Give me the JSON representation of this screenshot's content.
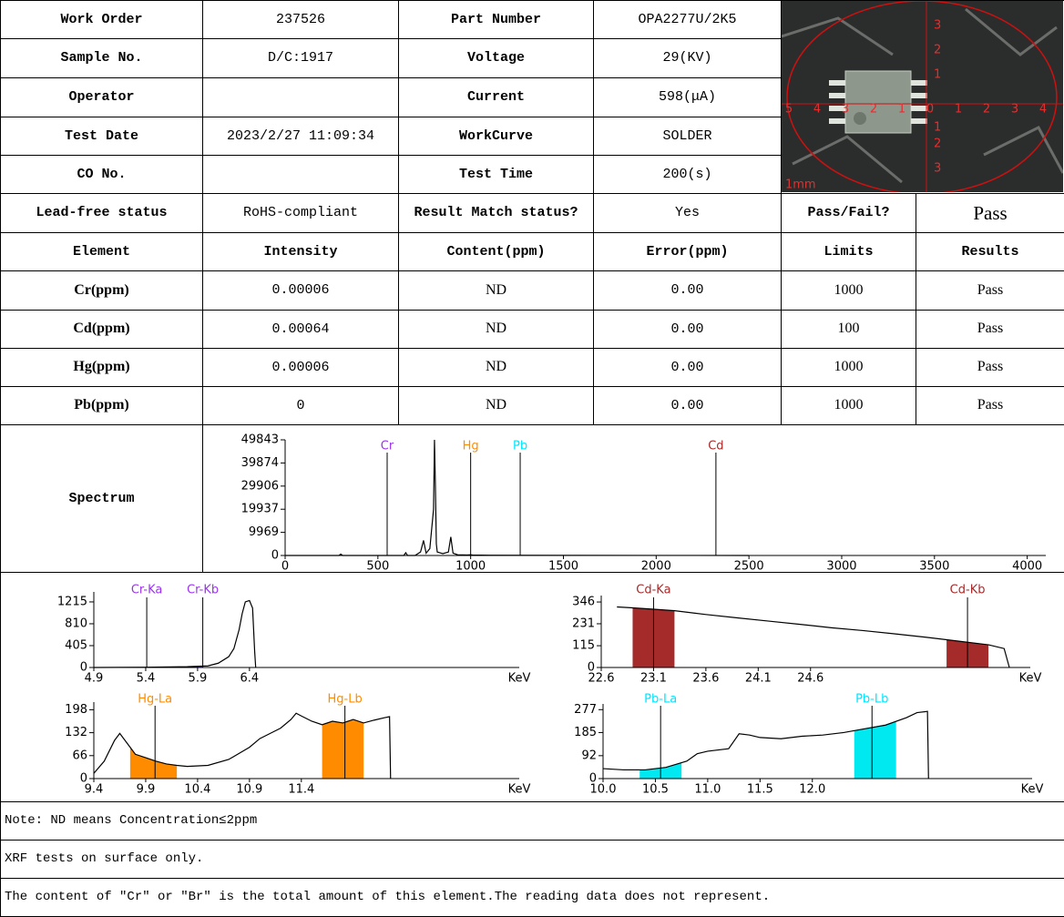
{
  "report": {
    "info": [
      [
        "Work Order",
        "237526",
        "Part Number",
        "OPA2277U/2K5"
      ],
      [
        "Sample No.",
        "D/C:1917",
        "Voltage",
        "29(KV)"
      ],
      [
        "Operator",
        "",
        "Current",
        "598(μA)"
      ],
      [
        "Test Date",
        "2023/2/27 11:09:34",
        "WorkCurve",
        "SOLDER"
      ],
      [
        "CO No.",
        "",
        "Test Time",
        "200(s)"
      ]
    ],
    "photo": {
      "scale_label": "1mm",
      "x_labels": [
        "5",
        "4",
        "3",
        "2",
        "1",
        "0",
        "1",
        "2",
        "3",
        "4"
      ],
      "y_labels": [
        "3",
        "2",
        "1",
        "1",
        "2",
        "3"
      ]
    },
    "status": [
      "Lead-free status",
      "RoHS-compliant",
      "Result Match status?",
      "Yes",
      "Pass/Fail?",
      "Pass"
    ],
    "elements": {
      "header": [
        "Element",
        "Intensity",
        "Content(ppm)",
        "Error(ppm)",
        "Limits",
        "Results"
      ],
      "rows": [
        [
          "Cr(ppm)",
          "0.00006",
          "ND",
          "0.00",
          "1000",
          "Pass"
        ],
        [
          "Cd(ppm)",
          "0.00064",
          "ND",
          "0.00",
          "100",
          "Pass"
        ],
        [
          "Hg(ppm)",
          "0.00006",
          "ND",
          "0.00",
          "1000",
          "Pass"
        ],
        [
          "Pb(ppm)",
          "0",
          "ND",
          "0.00",
          "1000",
          "Pass"
        ]
      ]
    },
    "spectrum_label": "Spectrum",
    "notes": [
      "Note: ND means Concentration≤2ppm",
      "XRF tests on surface only.",
      "The content of \"Cr\" or \"Br\" is the total amount of this element.The reading data does not represent."
    ]
  },
  "chart_data": [
    {
      "type": "line",
      "color": "#000000",
      "x": [
        0,
        100,
        200,
        290,
        300,
        310,
        400,
        500,
        600,
        640,
        650,
        660,
        700,
        730,
        746,
        760,
        780,
        800,
        805,
        810,
        815,
        820,
        850,
        880,
        893,
        905,
        930,
        980,
        1000,
        1010,
        1100,
        1500,
        2000,
        2500
      ],
      "values": [
        0,
        0,
        0,
        0,
        600,
        0,
        0,
        0,
        0,
        0,
        1200,
        0,
        0,
        1500,
        6500,
        1000,
        3000,
        20000,
        49843,
        30000,
        5000,
        1500,
        800,
        1500,
        8000,
        1000,
        300,
        200,
        300,
        200,
        100,
        50,
        30,
        0
      ],
      "xlim": [
        0,
        4100
      ],
      "ylim": [
        0,
        49843
      ],
      "xticks": [
        0,
        500,
        1000,
        1500,
        2000,
        2500,
        3000,
        3500,
        4000
      ],
      "yticks": [
        0,
        9969,
        19937,
        29906,
        39874,
        49843
      ],
      "markers": [
        {
          "label": "Cr",
          "x": 550,
          "color": "#9933ee"
        },
        {
          "label": "Hg",
          "x": 1000,
          "color": "#ff8c00"
        },
        {
          "label": "Pb",
          "x": 1267,
          "color": "#00e5ff"
        },
        {
          "label": "Cd",
          "x": 2322,
          "color": "#a52a2a"
        }
      ]
    },
    {
      "type": "line",
      "color": "#000000",
      "x": [
        4.9,
        5.4,
        5.8,
        6.0,
        6.1,
        6.2,
        6.25,
        6.3,
        6.33,
        6.36,
        6.4,
        6.43,
        6.45,
        6.46
      ],
      "values": [
        0,
        5,
        15,
        30,
        80,
        200,
        350,
        700,
        1000,
        1215,
        1240,
        1100,
        300,
        0
      ],
      "xlim": [
        4.9,
        9.0
      ],
      "ylim": [
        0,
        1400
      ],
      "xticks": [
        4.9,
        5.4,
        5.9,
        6.4
      ],
      "yticks": [
        0,
        405,
        810,
        1215
      ],
      "xlabel": "KeV",
      "bands": [
        {
          "from": 5.4,
          "to": 5.95,
          "color": "#5533ee"
        }
      ],
      "markers": [
        {
          "label": "Cr-Ka",
          "x": 5.41,
          "color": "#9933ee"
        },
        {
          "label": "Cr-Kb",
          "x": 5.95,
          "color": "#9933ee"
        }
      ]
    },
    {
      "type": "line",
      "color": "#000000",
      "x": [
        22.75,
        22.9,
        23.1,
        23.3,
        23.6,
        23.9,
        24.2,
        24.5,
        24.8,
        25.1,
        25.4,
        25.7,
        26.0,
        26.3,
        26.45,
        26.5
      ],
      "values": [
        320,
        315,
        308,
        300,
        280,
        262,
        245,
        228,
        210,
        195,
        178,
        160,
        140,
        120,
        100,
        0
      ],
      "xlim": [
        22.6,
        26.7
      ],
      "ylim": [
        0,
        380
      ],
      "xticks": [
        22.6,
        23.1,
        23.6,
        24.1,
        24.6
      ],
      "yticks": [
        0,
        115,
        231,
        346
      ],
      "xlabel": "KeV",
      "bands": [
        {
          "from": 22.9,
          "to": 23.3,
          "color": "#a52a2a"
        },
        {
          "from": 25.9,
          "to": 26.3,
          "color": "#a52a2a"
        }
      ],
      "markers": [
        {
          "label": "Cd-Ka",
          "x": 23.1,
          "color": "#a52a2a"
        },
        {
          "label": "Cd-Kb",
          "x": 26.1,
          "color": "#a52a2a"
        }
      ]
    },
    {
      "type": "line",
      "color": "#000000",
      "x": [
        9.4,
        9.5,
        9.6,
        9.65,
        9.7,
        9.8,
        9.9,
        10.0,
        10.1,
        10.2,
        10.3,
        10.5,
        10.7,
        10.9,
        11.0,
        11.1,
        11.2,
        11.3,
        11.35,
        11.4,
        11.5,
        11.6,
        11.7,
        11.8,
        11.9,
        12.0,
        12.1,
        12.2,
        12.25,
        12.26
      ],
      "values": [
        15,
        50,
        110,
        130,
        110,
        70,
        60,
        50,
        42,
        38,
        35,
        38,
        55,
        90,
        115,
        130,
        145,
        170,
        188,
        180,
        165,
        155,
        165,
        160,
        170,
        160,
        168,
        175,
        178,
        0
      ],
      "xlim": [
        9.4,
        13.5
      ],
      "ylim": [
        0,
        220
      ],
      "xticks": [
        9.4,
        9.9,
        10.4,
        10.9,
        11.4
      ],
      "yticks": [
        0,
        66,
        132,
        198
      ],
      "xlabel": "KeV",
      "bands": [
        {
          "from": 9.75,
          "to": 10.2,
          "color": "#ff8c00"
        },
        {
          "from": 11.6,
          "to": 12.0,
          "color": "#ff8c00"
        }
      ],
      "markers": [
        {
          "label": "Hg-La",
          "x": 9.99,
          "color": "#ff8c00"
        },
        {
          "label": "Hg-Lb",
          "x": 11.82,
          "color": "#ff8c00"
        }
      ]
    },
    {
      "type": "line",
      "color": "#000000",
      "x": [
        10.0,
        10.2,
        10.4,
        10.6,
        10.8,
        10.9,
        11.0,
        11.2,
        11.3,
        11.4,
        11.5,
        11.7,
        11.9,
        12.1,
        12.3,
        12.5,
        12.7,
        12.9,
        13.0,
        13.1,
        13.11
      ],
      "values": [
        40,
        35,
        35,
        45,
        70,
        100,
        110,
        120,
        180,
        175,
        165,
        160,
        170,
        175,
        185,
        200,
        215,
        245,
        265,
        270,
        0
      ],
      "xlim": [
        10.0,
        14.1
      ],
      "ylim": [
        0,
        300
      ],
      "xticks": [
        {
          "value": 10,
          "label": "10.0"
        },
        10.5,
        {
          "value": 11,
          "label": "11.0"
        },
        11.5,
        {
          "value": 12,
          "label": "12.0"
        }
      ],
      "yticks": [
        0,
        92,
        185,
        277
      ],
      "xlabel": "KeV",
      "bands": [
        {
          "from": 10.35,
          "to": 10.75,
          "color": "#00e8f0"
        },
        {
          "from": 12.4,
          "to": 12.8,
          "color": "#00e8f0"
        }
      ],
      "markers": [
        {
          "label": "Pb-La",
          "x": 10.55,
          "color": "#00e5ff"
        },
        {
          "label": "Pb-Lb",
          "x": 12.57,
          "color": "#00e5ff"
        }
      ]
    }
  ]
}
